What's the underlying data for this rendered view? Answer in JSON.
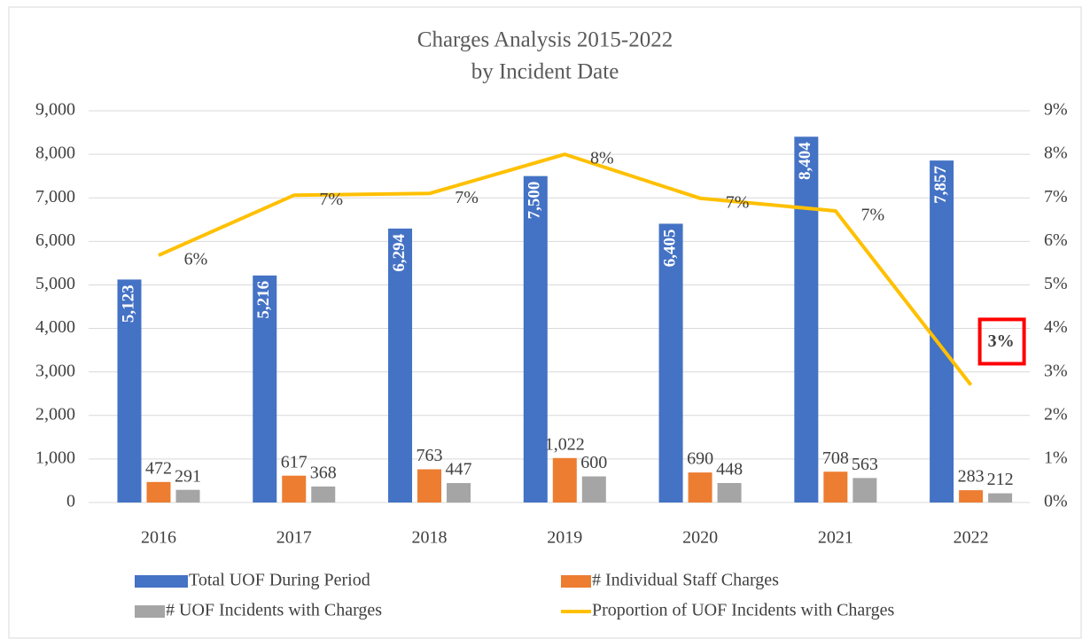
{
  "chart_data": {
    "type": "bar_line",
    "title": "Charges Analysis 2015-2022",
    "subtitle": "by Incident Date",
    "categories": [
      "2016",
      "2017",
      "2018",
      "2019",
      "2020",
      "2021",
      "2022"
    ],
    "series": [
      {
        "name": "Total UOF During Period",
        "type": "bar",
        "color": "#4472c4",
        "values": [
          5123,
          5216,
          6294,
          7500,
          6405,
          8404,
          7857
        ],
        "value_labels": [
          "5,123",
          "5,216",
          "6,294",
          "7,500",
          "6,405",
          "8,404",
          "7,857"
        ]
      },
      {
        "name": "# Individual Staff Charges",
        "type": "bar",
        "color": "#ed7d31",
        "values": [
          472,
          617,
          763,
          1022,
          690,
          708,
          283
        ],
        "value_labels": [
          "472",
          "617",
          "763",
          "1,022",
          "690",
          "708",
          "283"
        ]
      },
      {
        "name": "# UOF Incidents with Charges",
        "type": "bar",
        "color": "#a5a5a5",
        "values": [
          291,
          368,
          447,
          600,
          448,
          563,
          212
        ],
        "value_labels": [
          "291",
          "368",
          "447",
          "600",
          "448",
          "563",
          "212"
        ]
      },
      {
        "name": "Proportion of UOF Incidents with Charges",
        "type": "line",
        "axis": "y2",
        "color": "#ffc000",
        "values": [
          5.68,
          7.06,
          7.1,
          8.0,
          6.99,
          6.7,
          2.7
        ],
        "value_labels": [
          "6%",
          "7%",
          "7%",
          "8%",
          "7%",
          "7%",
          "3%"
        ]
      }
    ],
    "ylim": [
      0,
      9000
    ],
    "yticks": [
      0,
      {
        "value": 1000,
        "label": "1,000"
      },
      {
        "value": 2000,
        "label": "2,000"
      },
      {
        "value": 3000,
        "label": "3,000"
      },
      {
        "value": 4000,
        "label": "4,000"
      },
      {
        "value": 5000,
        "label": "5,000"
      },
      {
        "value": 6000,
        "label": "6,000"
      },
      {
        "value": 7000,
        "label": "7,000"
      },
      {
        "value": 8000,
        "label": "8,000"
      },
      {
        "value": 9000,
        "label": "9,000"
      }
    ],
    "y2lim": [
      0,
      9
    ],
    "y2ticks": [
      {
        "value": 0,
        "label": "0%"
      },
      {
        "value": 1,
        "label": "1%"
      },
      {
        "value": 2,
        "label": "2%"
      },
      {
        "value": 3,
        "label": "3%"
      },
      {
        "value": 4,
        "label": "4%"
      },
      {
        "value": 5,
        "label": "5%"
      },
      {
        "value": 6,
        "label": "6%"
      },
      {
        "value": 7,
        "label": "7%"
      },
      {
        "value": 8,
        "label": "8%"
      },
      {
        "value": 9,
        "label": "9%"
      }
    ],
    "grid": true,
    "legend": "bottom"
  }
}
